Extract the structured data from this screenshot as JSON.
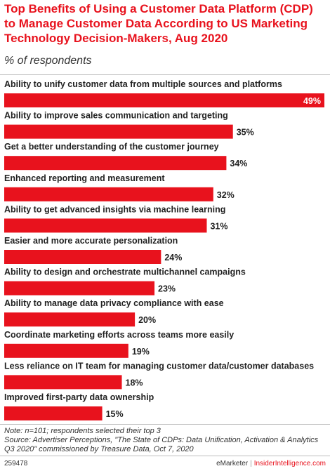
{
  "header": {
    "title": "Top Benefits of Using a Customer Data Platform (CDP) to Manage Customer Data According to US Marketing Technology Decision-Makers, Aug 2020",
    "subtitle": "% of respondents"
  },
  "chart_data": {
    "type": "bar",
    "orientation": "horizontal",
    "categories": [
      "Ability to unify customer data from multiple sources and platforms",
      "Ability to improve sales communication and targeting",
      "Get a better understanding of the customer journey",
      "Enhanced reporting and measurement",
      "Ability to get advanced insights via machine learning",
      "Easier and more accurate personalization",
      "Ability to design and orchestrate multichannel campaigns",
      "Ability to manage data privacy compliance with ease",
      "Coordinate marketing efforts across teams more easily",
      "Less reliance on IT team for managing customer data/customer databases",
      "Improved first-party data ownership"
    ],
    "values": [
      49,
      35,
      34,
      32,
      31,
      24,
      23,
      20,
      19,
      18,
      15
    ],
    "value_labels": [
      "49%",
      "35%",
      "34%",
      "32%",
      "31%",
      "24%",
      "23%",
      "20%",
      "19%",
      "18%",
      "15%"
    ],
    "bar_color": "#e8121d",
    "xlim": [
      0,
      49
    ],
    "grid": false,
    "legend": "none"
  },
  "footer": {
    "note": "Note: n=101; respondents selected their top 3",
    "source": "Source: Advertiser Perceptions, \"The State of CDPs: Data Unification, Activation & Analytics Q3 2020\" commissioned by Treasure Data, Oct 7, 2020",
    "chart_id": "259478",
    "brand_1": "eMarketer",
    "separator": "|",
    "brand_2": "InsiderIntelligence.com"
  }
}
